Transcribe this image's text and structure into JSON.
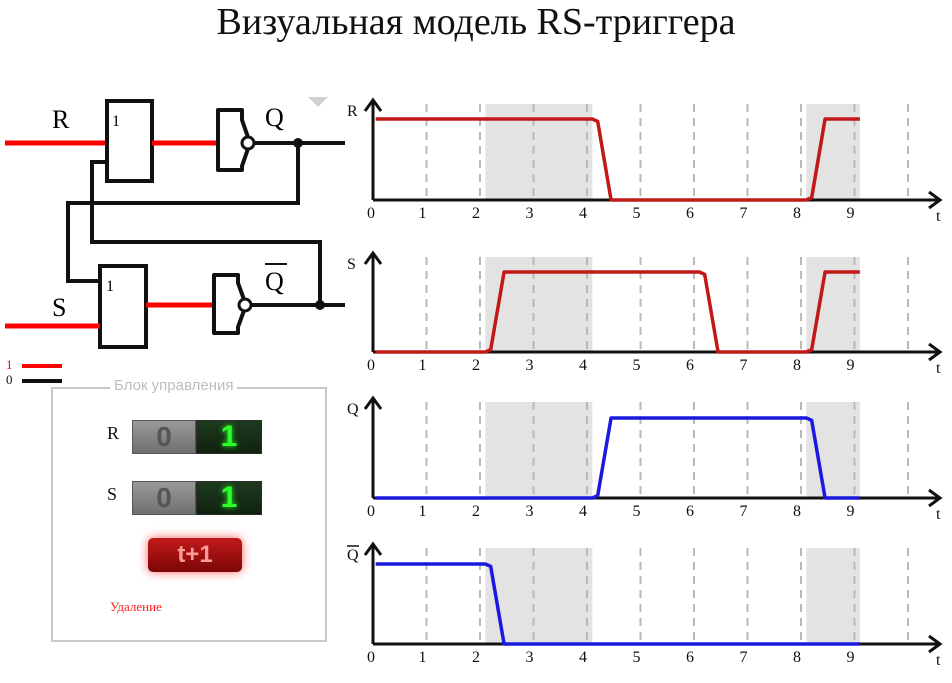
{
  "title": "Визуальная модель RS-триггера",
  "circuit": {
    "input_r": "R",
    "input_s": "S",
    "gate_label": "1",
    "output_q": "Q",
    "output_nq": "Q",
    "colors": {
      "active": "#ff0000",
      "inactive": "#111111"
    }
  },
  "legend": {
    "one": "1",
    "zero": "0"
  },
  "control": {
    "title": "Блок управления",
    "r_label": "R",
    "s_label": "S",
    "btn_off": "0",
    "btn_on": "1",
    "step_button": "t+1",
    "delete_link": "Удаление"
  },
  "chart_data": [
    {
      "type": "line",
      "ylabel": "R",
      "xlabel": "t",
      "x_ticks": [
        "0",
        "1",
        "2",
        "3",
        "4",
        "5",
        "6",
        "7",
        "8",
        "9"
      ],
      "xlim": [
        0,
        10.7
      ],
      "ylim": [
        0,
        1
      ],
      "shaded": [
        [
          2.1,
          4.1
        ],
        [
          8.1,
          9.1
        ]
      ],
      "color": "#c21818",
      "x": [
        0.05,
        4.1,
        4.2,
        4.45,
        8.1,
        8.2,
        8.45,
        9.1
      ],
      "y": [
        1,
        1,
        0.97,
        0,
        0,
        0.03,
        1,
        1
      ]
    },
    {
      "type": "line",
      "ylabel": "S",
      "xlabel": "t",
      "x_ticks": [
        "0",
        "1",
        "2",
        "3",
        "4",
        "5",
        "6",
        "7",
        "8",
        "9"
      ],
      "xlim": [
        0,
        10.7
      ],
      "ylim": [
        0,
        1
      ],
      "shaded": [
        [
          2.1,
          4.1
        ],
        [
          8.1,
          9.1
        ]
      ],
      "color": "#c21818",
      "x": [
        0.05,
        2.1,
        2.2,
        2.45,
        6.1,
        6.2,
        6.45,
        8.1,
        8.2,
        8.45,
        9.1
      ],
      "y": [
        0,
        0,
        0.03,
        1,
        1,
        0.97,
        0,
        0,
        0.03,
        1,
        1
      ]
    },
    {
      "type": "line",
      "ylabel": "Q",
      "xlabel": "t",
      "x_ticks": [
        "0",
        "1",
        "2",
        "3",
        "4",
        "5",
        "6",
        "7",
        "8",
        "9"
      ],
      "xlim": [
        0,
        10.7
      ],
      "ylim": [
        0,
        1
      ],
      "shaded": [
        [
          2.1,
          4.1
        ],
        [
          8.1,
          9.1
        ]
      ],
      "color": "#1a1adf",
      "x": [
        0.05,
        4.1,
        4.2,
        4.45,
        8.1,
        8.2,
        8.45,
        9.1
      ],
      "y": [
        0,
        0,
        0.03,
        1,
        1,
        0.97,
        0,
        0
      ]
    },
    {
      "type": "line",
      "ylabel": "Q",
      "ylabel_overline": true,
      "xlabel": "t",
      "x_ticks": [
        "0",
        "1",
        "2",
        "3",
        "4",
        "5",
        "6",
        "7",
        "8",
        "9"
      ],
      "xlim": [
        0,
        10.7
      ],
      "ylim": [
        0,
        1
      ],
      "shaded": [
        [
          2.1,
          4.1
        ],
        [
          8.1,
          9.1
        ]
      ],
      "color": "#1a1adf",
      "x": [
        0.05,
        2.1,
        2.2,
        2.45,
        9.1
      ],
      "y": [
        1,
        1,
        0.97,
        0,
        0
      ]
    }
  ]
}
